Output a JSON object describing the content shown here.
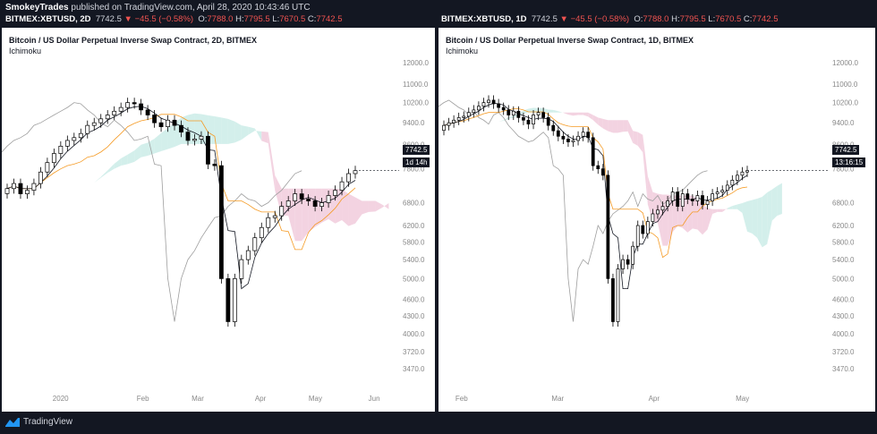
{
  "header": {
    "author": "SmokeyTrades",
    "published": "published on TradingView.com, April 28, 2020 10:43:46 UTC"
  },
  "left": {
    "symbol": "BITMEX:XBTUSD, 2D",
    "last": "7742.5",
    "change": "−45.5 (−0.58%)",
    "o": "7788.0",
    "h": "7795.5",
    "l": "7670.5",
    "c": "7742.5",
    "title": "Bitcoin / US Dollar Perpetual Inverse Swap Contract, 2D, BITMEX",
    "indicator": "Ichimoku",
    "price_tag": "7742.5",
    "countdown": "1d 14h"
  },
  "right": {
    "symbol": "BITMEX:XBTUSD, 1D",
    "last": "7742.5",
    "change": "−45.5 (−0.58%)",
    "o": "7788.0",
    "h": "7795.5",
    "l": "7670.5",
    "c": "7742.5",
    "title": "Bitcoin / US Dollar Perpetual Inverse Swap Contract, 1D, BITMEX",
    "indicator": "Ichimoku",
    "price_tag": "7742.5",
    "countdown": "13:16:15"
  },
  "footer": {
    "brand": "TradingView"
  },
  "colors": {
    "background": "#131722",
    "panel": "#ffffff",
    "tenkan": "#131722",
    "kijun": "#f59a23",
    "chikou": "#9e9e9e",
    "cloud_bull": "#c8ebe6",
    "cloud_bear": "#f0c8da",
    "candle": "#000000",
    "down": "#ef5350"
  },
  "chart_data": [
    {
      "type": "line",
      "title": "Bitcoin / US Dollar Perpetual Inverse Swap Contract, 2D, BITMEX",
      "indicator": "Ichimoku",
      "y_scale": "log",
      "y_ticks": [
        12000,
        11000,
        10200,
        9400,
        8600,
        7800,
        6800,
        6200,
        5800,
        5400,
        5000,
        4600,
        4300,
        4000,
        3720,
        3470
      ],
      "y_tick_labels": [
        "12000.0",
        "11000.0",
        "10200.0",
        "9400.0",
        "8600.0",
        "7800.0",
        "6800.0",
        "6200.0",
        "5800.0",
        "5400.0",
        "5000.0",
        "4600.0",
        "4300.0",
        "4000.0",
        "3720.0",
        "3470.0"
      ],
      "x_labels": [
        "2020",
        "Feb",
        "Mar",
        "Apr",
        "May",
        "Jun"
      ],
      "ylim": [
        3300,
        12300
      ],
      "series": [
        {
          "name": "XBTUSD close",
          "values": [
            7200,
            7350,
            7050,
            7150,
            7350,
            7700,
            8000,
            8300,
            8550,
            8750,
            8850,
            9000,
            9300,
            9400,
            9550,
            9700,
            9850,
            10000,
            10200,
            10150,
            9900,
            9700,
            9400,
            9250,
            9500,
            9300,
            9050,
            8750,
            8800,
            8900,
            7950,
            7900,
            5000,
            4200,
            5000,
            5400,
            5600,
            5900,
            6150,
            6400,
            6450,
            6700,
            6850,
            7050,
            6900,
            6850,
            6700,
            6800,
            7000,
            7150,
            7400,
            7650,
            7742.5
          ]
        }
      ]
    },
    {
      "type": "line",
      "title": "Bitcoin / US Dollar Perpetual Inverse Swap Contract, 1D, BITMEX",
      "indicator": "Ichimoku",
      "y_scale": "log",
      "y_ticks": [
        12000,
        11000,
        10200,
        9400,
        8600,
        7800,
        6800,
        6200,
        5800,
        5400,
        5000,
        4600,
        4300,
        4000,
        3720,
        3470
      ],
      "y_tick_labels": [
        "12000.0",
        "11000.0",
        "10200.0",
        "9400.0",
        "8600.0",
        "7800.0",
        "6800.0",
        "6200.0",
        "5800.0",
        "5400.0",
        "5000.0",
        "4600.0",
        "4300.0",
        "4000.0",
        "3720.0",
        "3470.0"
      ],
      "x_labels": [
        "Feb",
        "Mar",
        "Apr",
        "May"
      ],
      "ylim": [
        3300,
        12300
      ],
      "series": [
        {
          "name": "XBTUSD close",
          "values": [
            9300,
            9400,
            9500,
            9600,
            9650,
            9800,
            9900,
            10050,
            10200,
            10300,
            10150,
            10000,
            9900,
            9700,
            9850,
            9600,
            9500,
            9350,
            9700,
            9800,
            9600,
            9300,
            9100,
            8900,
            8800,
            8700,
            8750,
            8900,
            9050,
            8850,
            7900,
            7800,
            7600,
            5000,
            4200,
            5200,
            5400,
            5300,
            5700,
            6200,
            6000,
            6300,
            6500,
            6600,
            6700,
            6850,
            7100,
            6700,
            7050,
            6900,
            6850,
            7000,
            6750,
            6850,
            7050,
            7100,
            7150,
            7300,
            7450,
            7600,
            7700,
            7742.5
          ]
        }
      ]
    }
  ]
}
